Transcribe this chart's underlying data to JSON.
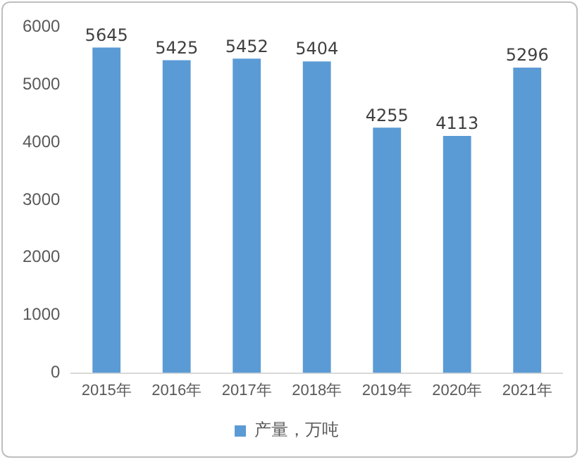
{
  "chart_data": {
    "type": "bar",
    "categories": [
      "2015年",
      "2016年",
      "2017年",
      "2018年",
      "2019年",
      "2020年",
      "2021年"
    ],
    "series": [
      {
        "name": "产量，万吨",
        "color": "#5b9bd5",
        "values": [
          5645,
          5425,
          5452,
          5404,
          4255,
          4113,
          5296
        ]
      }
    ],
    "ylim": [
      0,
      6000
    ],
    "yticks": [
      0,
      1000,
      2000,
      3000,
      4000,
      5000,
      6000
    ],
    "grid": false,
    "legend": "bottom",
    "data_labels": true
  }
}
